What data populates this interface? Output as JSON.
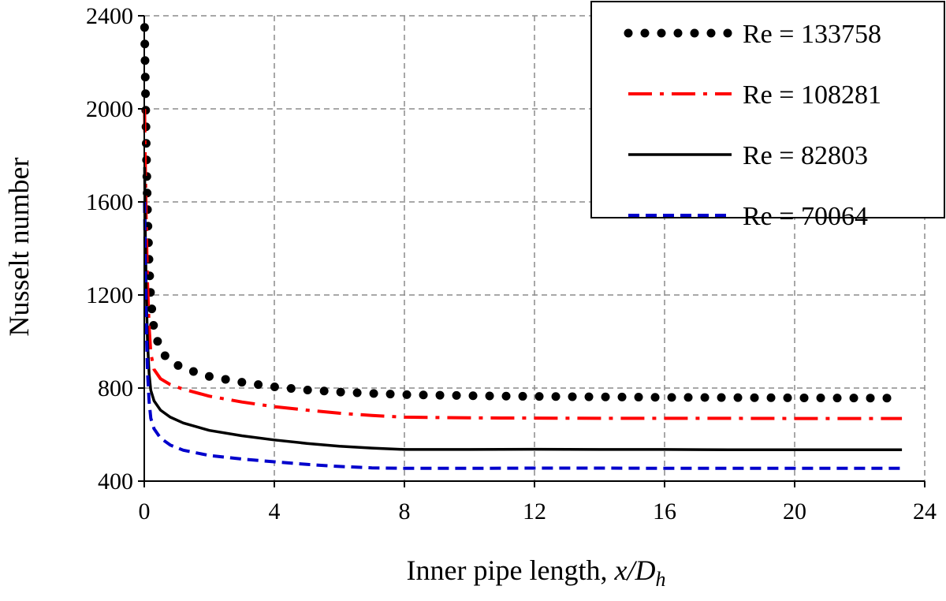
{
  "chart_data": {
    "type": "line",
    "title": "",
    "xlabel": "Inner pipe length, ",
    "xlabel_italic": "x/D",
    "xlabel_sub": "h",
    "ylabel": "Nusselt number",
    "xlim": [
      0,
      24
    ],
    "ylim": [
      400,
      2400
    ],
    "xticks": [
      0,
      4,
      8,
      12,
      16,
      20,
      24
    ],
    "yticks": [
      400,
      800,
      1200,
      1600,
      2000,
      2400
    ],
    "grid": true,
    "legend_position": "top-right",
    "series": [
      {
        "name": "Re = 133758",
        "color": "#000000",
        "style": "dotted",
        "x": [
          0.01,
          0.03,
          0.06,
          0.1,
          0.15,
          0.2,
          0.3,
          0.5,
          0.8,
          1.2,
          2,
          3,
          4,
          5,
          6,
          7,
          8,
          10,
          12,
          14,
          16,
          18,
          20,
          22,
          23.3
        ],
        "y": [
          2350,
          2150,
          1850,
          1560,
          1330,
          1180,
          1050,
          960,
          915,
          885,
          850,
          825,
          805,
          792,
          783,
          777,
          772,
          767,
          764,
          762,
          760,
          759,
          758,
          757,
          757
        ]
      },
      {
        "name": "Re = 108281",
        "color": "#ff0000",
        "style": "dash-dot",
        "x": [
          0.01,
          0.03,
          0.06,
          0.1,
          0.15,
          0.2,
          0.3,
          0.5,
          0.8,
          1.2,
          2,
          3,
          4,
          5,
          6,
          7,
          8,
          10,
          12,
          14,
          16,
          18,
          20,
          22,
          23.3
        ],
        "y": [
          2000,
          1780,
          1500,
          1250,
          1060,
          950,
          880,
          840,
          815,
          795,
          765,
          740,
          720,
          705,
          692,
          682,
          675,
          672,
          671,
          670,
          670,
          670,
          669,
          669,
          669
        ]
      },
      {
        "name": "Re = 82803",
        "color": "#000000",
        "style": "solid",
        "x": [
          0.01,
          0.03,
          0.06,
          0.1,
          0.15,
          0.2,
          0.3,
          0.5,
          0.8,
          1.2,
          2,
          3,
          4,
          5,
          6,
          7,
          8,
          10,
          12,
          14,
          16,
          18,
          20,
          22,
          23.3
        ],
        "y": [
          1750,
          1500,
          1220,
          1000,
          860,
          790,
          745,
          705,
          675,
          650,
          618,
          595,
          577,
          562,
          550,
          542,
          536,
          536,
          537,
          536,
          536,
          535,
          535,
          535,
          535
        ]
      },
      {
        "name": "Re = 70064",
        "color": "#0000cc",
        "style": "dashed",
        "x": [
          0.01,
          0.03,
          0.06,
          0.1,
          0.15,
          0.2,
          0.3,
          0.5,
          0.8,
          1.2,
          2,
          3,
          4,
          5,
          6,
          7,
          8,
          10,
          12,
          14,
          16,
          18,
          20,
          22,
          23.3
        ],
        "y": [
          1600,
          1350,
          1080,
          870,
          740,
          670,
          625,
          585,
          555,
          533,
          510,
          495,
          483,
          472,
          463,
          457,
          455,
          455,
          456,
          456,
          455,
          455,
          455,
          455,
          455
        ]
      }
    ]
  }
}
